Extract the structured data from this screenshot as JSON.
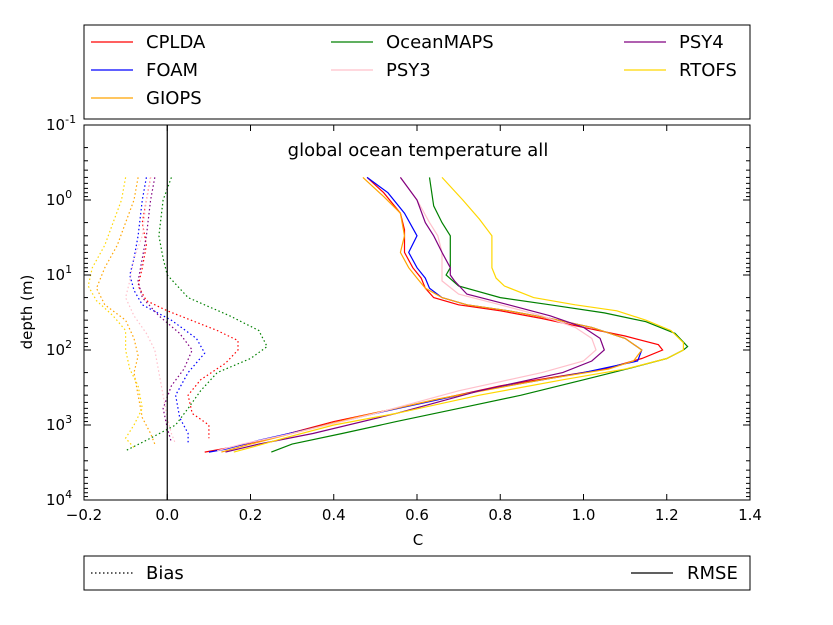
{
  "chart_data": {
    "type": "line",
    "title": "global ocean temperature all",
    "xlabel": "C",
    "ylabel": "depth (m)",
    "xlim": [
      -0.2,
      1.4
    ],
    "ylim": [
      0.1,
      10000
    ],
    "y_scale": "log",
    "y_inverted": true,
    "grid": false,
    "x_ticks": [
      "−0.2",
      "0.0",
      "0.2",
      "0.4",
      "0.6",
      "0.8",
      "1.0",
      "1.2",
      "1.4"
    ],
    "x_tick_values": [
      -0.2,
      0.0,
      0.2,
      0.4,
      0.6,
      0.8,
      1.0,
      1.2,
      1.4
    ],
    "y_ticks": [
      {
        "base": "10",
        "exp": "-1",
        "value": 0.1
      },
      {
        "base": "10",
        "exp": "0",
        "value": 1
      },
      {
        "base": "10",
        "exp": "1",
        "value": 10
      },
      {
        "base": "10",
        "exp": "2",
        "value": 100
      },
      {
        "base": "10",
        "exp": "3",
        "value": 1000
      },
      {
        "base": "10",
        "exp": "4",
        "value": 10000
      }
    ],
    "legend_top": {
      "placement": "above",
      "columns": [
        [
          "CPLDA",
          "FOAM",
          "GIOPS"
        ],
        [
          "OceanMAPS",
          "PSY3"
        ],
        [
          "PSY4",
          "RTOFS"
        ]
      ]
    },
    "legend_bottom": {
      "placement": "below",
      "entries": [
        {
          "label": "Bias",
          "style": "dotted"
        },
        {
          "label": "RMSE",
          "style": "solid"
        }
      ]
    },
    "series": [
      {
        "name": "CPLDA",
        "color": "#ff0000",
        "rmse": [
          [
            0.48,
            0.5
          ],
          [
            0.52,
            0.8
          ],
          [
            0.56,
            1.5
          ],
          [
            0.57,
            2.5
          ],
          [
            0.57,
            5
          ],
          [
            0.59,
            8
          ],
          [
            0.61,
            11
          ],
          [
            0.62,
            15
          ],
          [
            0.64,
            20
          ],
          [
            0.7,
            25
          ],
          [
            0.8,
            30
          ],
          [
            0.9,
            38
          ],
          [
            1.0,
            50
          ],
          [
            1.1,
            65
          ],
          [
            1.18,
            85
          ],
          [
            1.19,
            100
          ],
          [
            1.14,
            130
          ],
          [
            1.05,
            180
          ],
          [
            0.8,
            300
          ],
          [
            0.55,
            600
          ],
          [
            0.4,
            900
          ],
          [
            0.25,
            1500
          ],
          [
            0.15,
            2000
          ],
          [
            0.09,
            2300
          ]
        ],
        "bias": [
          [
            -0.04,
            0.5
          ],
          [
            -0.05,
            1
          ],
          [
            -0.06,
            2
          ],
          [
            -0.05,
            4
          ],
          [
            -0.06,
            8
          ],
          [
            -0.07,
            14
          ],
          [
            -0.05,
            22
          ],
          [
            0.0,
            30
          ],
          [
            0.12,
            55
          ],
          [
            0.17,
            75
          ],
          [
            0.17,
            100
          ],
          [
            0.14,
            150
          ],
          [
            0.08,
            250
          ],
          [
            0.05,
            400
          ],
          [
            0.06,
            700
          ],
          [
            0.1,
            1000
          ],
          [
            0.1,
            1500
          ]
        ]
      },
      {
        "name": "FOAM",
        "color": "#0000ff",
        "rmse": [
          [
            0.48,
            0.5
          ],
          [
            0.53,
            0.8
          ],
          [
            0.57,
            1.5
          ],
          [
            0.6,
            3
          ],
          [
            0.58,
            5
          ],
          [
            0.6,
            8
          ],
          [
            0.62,
            11
          ],
          [
            0.63,
            15
          ],
          [
            0.66,
            20
          ],
          [
            0.72,
            25
          ],
          [
            0.82,
            30
          ],
          [
            0.92,
            38
          ],
          [
            1.02,
            50
          ],
          [
            1.1,
            70
          ],
          [
            1.14,
            100
          ],
          [
            1.13,
            140
          ],
          [
            1.0,
            200
          ],
          [
            0.75,
            350
          ],
          [
            0.5,
            700
          ],
          [
            0.35,
            1100
          ],
          [
            0.22,
            1600
          ],
          [
            0.14,
            2100
          ],
          [
            0.1,
            2300
          ]
        ],
        "bias": [
          [
            -0.05,
            0.5
          ],
          [
            -0.06,
            1
          ],
          [
            -0.07,
            3
          ],
          [
            -0.08,
            6
          ],
          [
            -0.09,
            10
          ],
          [
            -0.08,
            16
          ],
          [
            -0.06,
            25
          ],
          [
            0.01,
            40
          ],
          [
            0.07,
            70
          ],
          [
            0.09,
            110
          ],
          [
            0.05,
            200
          ],
          [
            0.02,
            400
          ],
          [
            0.03,
            800
          ],
          [
            0.05,
            1300
          ],
          [
            0.05,
            1800
          ]
        ]
      },
      {
        "name": "GIOPS",
        "color": "#ffa500",
        "rmse": [
          [
            0.47,
            0.5
          ],
          [
            0.52,
            0.9
          ],
          [
            0.56,
            1.5
          ],
          [
            0.57,
            3
          ],
          [
            0.56,
            5
          ],
          [
            0.58,
            8
          ],
          [
            0.6,
            11
          ],
          [
            0.62,
            15
          ],
          [
            0.66,
            20
          ],
          [
            0.72,
            25
          ],
          [
            0.82,
            30
          ],
          [
            0.92,
            38
          ],
          [
            1.02,
            50
          ],
          [
            1.1,
            70
          ],
          [
            1.14,
            100
          ],
          [
            1.12,
            140
          ],
          [
            1.06,
            180
          ],
          [
            0.9,
            250
          ],
          [
            0.65,
            450
          ],
          [
            0.45,
            800
          ],
          [
            0.3,
            1300
          ],
          [
            0.2,
            1800
          ],
          [
            0.13,
            2300
          ]
        ],
        "bias": [
          [
            -0.07,
            0.5
          ],
          [
            -0.08,
            1
          ],
          [
            -0.1,
            2
          ],
          [
            -0.12,
            4
          ],
          [
            -0.15,
            8
          ],
          [
            -0.17,
            15
          ],
          [
            -0.15,
            25
          ],
          [
            -0.1,
            40
          ],
          [
            -0.08,
            70
          ],
          [
            -0.07,
            120
          ],
          [
            -0.08,
            200
          ],
          [
            -0.07,
            400
          ],
          [
            -0.06,
            800
          ],
          [
            -0.04,
            1300
          ],
          [
            -0.03,
            1800
          ]
        ]
      },
      {
        "name": "OceanMAPS",
        "color": "#008000",
        "rmse": [
          [
            0.63,
            0.5
          ],
          [
            0.64,
            1.2
          ],
          [
            0.66,
            2
          ],
          [
            0.68,
            3
          ],
          [
            0.68,
            5
          ],
          [
            0.68,
            8
          ],
          [
            0.67,
            10
          ],
          [
            0.7,
            14
          ],
          [
            0.8,
            20
          ],
          [
            0.92,
            25
          ],
          [
            1.05,
            32
          ],
          [
            1.15,
            42
          ],
          [
            1.22,
            60
          ],
          [
            1.25,
            90
          ],
          [
            1.24,
            100
          ],
          [
            1.2,
            130
          ],
          [
            1.12,
            170
          ],
          [
            1.0,
            250
          ],
          [
            0.85,
            400
          ],
          [
            0.7,
            600
          ],
          [
            0.55,
            900
          ],
          [
            0.42,
            1300
          ],
          [
            0.3,
            1800
          ],
          [
            0.25,
            2300
          ]
        ],
        "bias": [
          [
            0.01,
            0.5
          ],
          [
            -0.01,
            1
          ],
          [
            -0.02,
            3
          ],
          [
            -0.01,
            6
          ],
          [
            0.0,
            10
          ],
          [
            0.05,
            20
          ],
          [
            0.15,
            35
          ],
          [
            0.22,
            55
          ],
          [
            0.24,
            90
          ],
          [
            0.2,
            130
          ],
          [
            0.12,
            200
          ],
          [
            0.08,
            350
          ],
          [
            0.05,
            600
          ],
          [
            0.02,
            1000
          ],
          [
            -0.05,
            1600
          ],
          [
            -0.1,
            2200
          ]
        ]
      },
      {
        "name": "PSY3",
        "color": "#ffc0cb",
        "rmse": [
          [
            0.56,
            0.5
          ],
          [
            0.6,
            1
          ],
          [
            0.63,
            2
          ],
          [
            0.65,
            3
          ],
          [
            0.66,
            5
          ],
          [
            0.66,
            8
          ],
          [
            0.66,
            12
          ],
          [
            0.7,
            18
          ],
          [
            0.8,
            25
          ],
          [
            0.9,
            35
          ],
          [
            0.98,
            50
          ],
          [
            1.02,
            70
          ],
          [
            1.03,
            100
          ],
          [
            1.0,
            140
          ],
          [
            0.9,
            200
          ],
          [
            0.7,
            350
          ],
          [
            0.5,
            700
          ],
          [
            0.3,
            1300
          ],
          [
            0.18,
            1800
          ],
          [
            0.12,
            2200
          ]
        ],
        "bias": [
          [
            -0.04,
            0.5
          ],
          [
            -0.05,
            1
          ],
          [
            -0.06,
            3
          ],
          [
            -0.08,
            6
          ],
          [
            -0.09,
            12
          ],
          [
            -0.1,
            20
          ],
          [
            -0.08,
            35
          ],
          [
            -0.05,
            60
          ],
          [
            -0.03,
            100
          ],
          [
            -0.02,
            200
          ],
          [
            -0.01,
            400
          ],
          [
            0.0,
            800
          ],
          [
            0.01,
            1300
          ],
          [
            0.02,
            1800
          ]
        ]
      },
      {
        "name": "PSY4",
        "color": "#800080",
        "rmse": [
          [
            0.56,
            0.5
          ],
          [
            0.6,
            1
          ],
          [
            0.62,
            2
          ],
          [
            0.64,
            3
          ],
          [
            0.66,
            5
          ],
          [
            0.68,
            8
          ],
          [
            0.68,
            10
          ],
          [
            0.69,
            12
          ],
          [
            0.72,
            18
          ],
          [
            0.82,
            25
          ],
          [
            0.92,
            35
          ],
          [
            1.0,
            50
          ],
          [
            1.04,
            70
          ],
          [
            1.05,
            100
          ],
          [
            1.02,
            140
          ],
          [
            0.95,
            200
          ],
          [
            0.75,
            350
          ],
          [
            0.55,
            700
          ],
          [
            0.35,
            1300
          ],
          [
            0.22,
            1800
          ],
          [
            0.14,
            2300
          ]
        ],
        "bias": [
          [
            -0.03,
            0.5
          ],
          [
            -0.04,
            1
          ],
          [
            -0.05,
            3
          ],
          [
            -0.06,
            6
          ],
          [
            -0.07,
            12
          ],
          [
            -0.06,
            20
          ],
          [
            -0.02,
            35
          ],
          [
            0.03,
            60
          ],
          [
            0.06,
            100
          ],
          [
            0.04,
            180
          ],
          [
            0.01,
            300
          ],
          [
            -0.01,
            600
          ],
          [
            0.0,
            1100
          ],
          [
            0.01,
            1700
          ]
        ]
      },
      {
        "name": "RTOFS",
        "color": "#ffd700",
        "rmse": [
          [
            0.66,
            0.5
          ],
          [
            0.71,
            1
          ],
          [
            0.75,
            1.8
          ],
          [
            0.78,
            3
          ],
          [
            0.78,
            5
          ],
          [
            0.78,
            8
          ],
          [
            0.79,
            11
          ],
          [
            0.81,
            14
          ],
          [
            0.88,
            20
          ],
          [
            0.98,
            25
          ],
          [
            1.08,
            30
          ],
          [
            1.15,
            40
          ],
          [
            1.21,
            55
          ],
          [
            1.24,
            80
          ],
          [
            1.24,
            100
          ],
          [
            1.2,
            130
          ],
          [
            1.1,
            180
          ],
          [
            0.95,
            250
          ],
          [
            0.75,
            400
          ],
          [
            0.55,
            700
          ],
          [
            0.4,
            1000
          ],
          [
            0.28,
            1500
          ],
          [
            0.2,
            2000
          ],
          [
            0.16,
            2300
          ]
        ],
        "bias": [
          [
            -0.1,
            0.5
          ],
          [
            -0.11,
            1
          ],
          [
            -0.13,
            2
          ],
          [
            -0.15,
            4
          ],
          [
            -0.18,
            8
          ],
          [
            -0.19,
            14
          ],
          [
            -0.17,
            22
          ],
          [
            -0.13,
            35
          ],
          [
            -0.1,
            55
          ],
          [
            -0.1,
            100
          ],
          [
            -0.09,
            180
          ],
          [
            -0.07,
            300
          ],
          [
            -0.06,
            600
          ],
          [
            -0.08,
            1000
          ],
          [
            -0.1,
            1500
          ],
          [
            -0.08,
            2000
          ]
        ]
      }
    ]
  }
}
